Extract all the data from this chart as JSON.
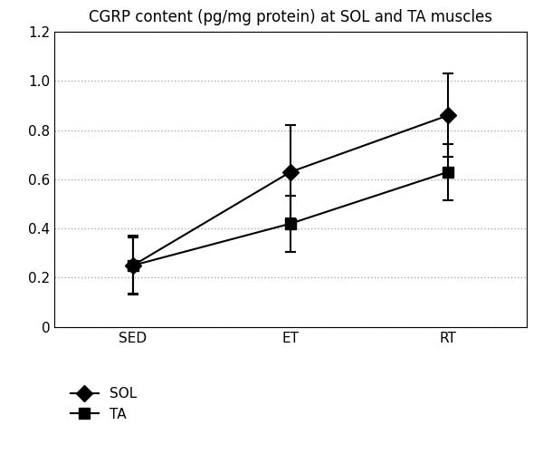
{
  "title": "CGRP content (pg/mg protein) at SOL and TA muscles",
  "x_labels": [
    "SED",
    "ET",
    "RT"
  ],
  "x_positions": [
    0,
    1,
    2
  ],
  "series": [
    {
      "name": "SOL",
      "values": [
        0.25,
        0.63,
        0.86
      ],
      "yerr_low": [
        0.12,
        0.19,
        0.17
      ],
      "yerr_high": [
        0.12,
        0.19,
        0.17
      ],
      "marker": "D",
      "markersize": 9,
      "color": "#000000",
      "linewidth": 1.5
    },
    {
      "name": "TA",
      "values": [
        0.25,
        0.42,
        0.63
      ],
      "yerr_low": [
        0.115,
        0.115,
        0.115
      ],
      "yerr_high": [
        0.115,
        0.115,
        0.115
      ],
      "marker": "s",
      "markersize": 8,
      "color": "#000000",
      "linewidth": 1.5
    }
  ],
  "ylim": [
    0,
    1.2
  ],
  "yticks": [
    0,
    0.2,
    0.4,
    0.6,
    0.8,
    1.0,
    1.2
  ],
  "xlim": [
    -0.5,
    2.5
  ],
  "grid_color": "#aaaaaa",
  "background_color": "#ffffff",
  "capsize": 4,
  "title_fontsize": 12,
  "tick_fontsize": 11,
  "legend_fontsize": 11
}
